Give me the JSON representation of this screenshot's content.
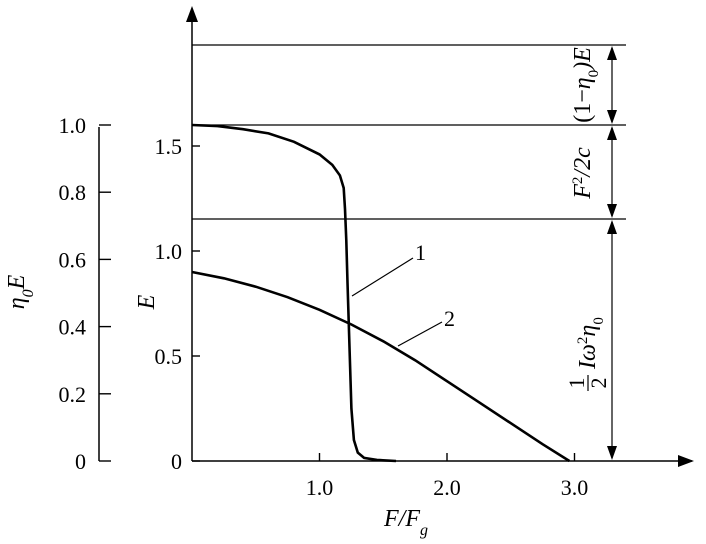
{
  "chart_data": {
    "type": "line",
    "title": "",
    "xlabel_main": "F/F",
    "xlabel_sub": "g",
    "ylabel_left_pre": "η",
    "ylabel_left_sub": "0",
    "ylabel_left_post": "E",
    "ylabel_right": "E",
    "xlim": [
      0,
      3.5
    ],
    "ylim": [
      0,
      2.0
    ],
    "x_ticks": [
      {
        "v": 1.0,
        "label": "1.0"
      },
      {
        "v": 2.0,
        "label": "2.0"
      },
      {
        "v": 3.0,
        "label": "3.0"
      }
    ],
    "y_ticks_E": [
      {
        "v": 0,
        "label": "0"
      },
      {
        "v": 0.5,
        "label": "0.5"
      },
      {
        "v": 1.0,
        "label": "1.0"
      },
      {
        "v": 1.5,
        "label": "1.5"
      }
    ],
    "y_ticks_eta": [
      {
        "v": 0,
        "label": "0"
      },
      {
        "v": 0.2,
        "label": "0.2"
      },
      {
        "v": 0.4,
        "label": "0.4"
      },
      {
        "v": 0.6,
        "label": "0.6"
      },
      {
        "v": 0.8,
        "label": "0.8"
      },
      {
        "v": 1.0,
        "label": "1.0"
      }
    ],
    "eta_axis_scale_E_per_unit": 1.6,
    "series": [
      {
        "name": "1",
        "x": [
          0,
          0.2,
          0.4,
          0.6,
          0.8,
          1.0,
          1.1,
          1.16,
          1.19,
          1.2,
          1.21,
          1.22,
          1.23,
          1.24,
          1.25,
          1.27,
          1.3,
          1.35,
          1.45,
          1.6
        ],
        "y": [
          1.6,
          1.595,
          1.58,
          1.56,
          1.52,
          1.46,
          1.41,
          1.36,
          1.3,
          1.2,
          1.05,
          0.85,
          0.65,
          0.45,
          0.25,
          0.1,
          0.04,
          0.015,
          0.005,
          0
        ]
      },
      {
        "name": "2",
        "x": [
          0,
          0.25,
          0.5,
          0.75,
          1.0,
          1.25,
          1.5,
          1.75,
          2.0,
          2.25,
          2.5,
          2.75,
          2.96
        ],
        "y": [
          0.9,
          0.87,
          0.83,
          0.78,
          0.72,
          0.65,
          0.57,
          0.48,
          0.38,
          0.28,
          0.18,
          0.08,
          0
        ]
      }
    ],
    "horizontal_lines_E": [
      1.6,
      1.16,
      2.0
    ],
    "bracket_labels": {
      "top": {
        "pre": "(1−",
        "eta": "η",
        "sub": "0",
        "post": ")E"
      },
      "middle": {
        "F": "F",
        "sup": "2",
        "post": "/2c"
      },
      "bottom": {
        "frac_num": "1",
        "frac_den": "2",
        "I": "Iω",
        "sup": "2",
        "eta": "η",
        "sub": "0"
      }
    },
    "curve_labels": [
      "1",
      "2"
    ],
    "grid": false,
    "legend": "none"
  }
}
